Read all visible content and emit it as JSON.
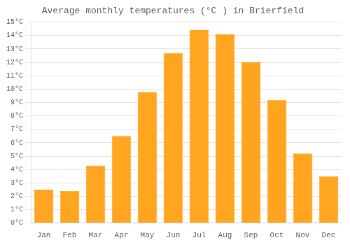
{
  "chart_data": {
    "type": "bar",
    "title": "Average monthly temperatures (°C ) in Brierfield",
    "categories": [
      "Jan",
      "Feb",
      "Mar",
      "Apr",
      "May",
      "Jun",
      "Jul",
      "Aug",
      "Sep",
      "Oct",
      "Nov",
      "Dec"
    ],
    "values": [
      2.5,
      2.4,
      4.3,
      6.5,
      9.8,
      12.7,
      14.4,
      14.1,
      12.0,
      9.2,
      5.2,
      3.5
    ],
    "color": "#FFA520",
    "ylim": [
      0,
      15
    ],
    "yticks": [
      {
        "value": 0,
        "label": "0°C"
      },
      {
        "value": 1,
        "label": "1°C"
      },
      {
        "value": 2,
        "label": "2°C"
      },
      {
        "value": 3,
        "label": "3°C"
      },
      {
        "value": 4,
        "label": "4°C"
      },
      {
        "value": 5,
        "label": "5°C"
      },
      {
        "value": 6,
        "label": "6°C"
      },
      {
        "value": 7,
        "label": "7°C"
      },
      {
        "value": 8,
        "label": "8°C"
      },
      {
        "value": 9,
        "label": "9°C"
      },
      {
        "value": 10,
        "label": "10°C"
      },
      {
        "value": 11,
        "label": "11°C"
      },
      {
        "value": 12,
        "label": "12°C"
      },
      {
        "value": 13,
        "label": "13°C"
      },
      {
        "value": 14,
        "label": "14°C"
      },
      {
        "value": 15,
        "label": "15°C"
      }
    ],
    "grid": true
  }
}
